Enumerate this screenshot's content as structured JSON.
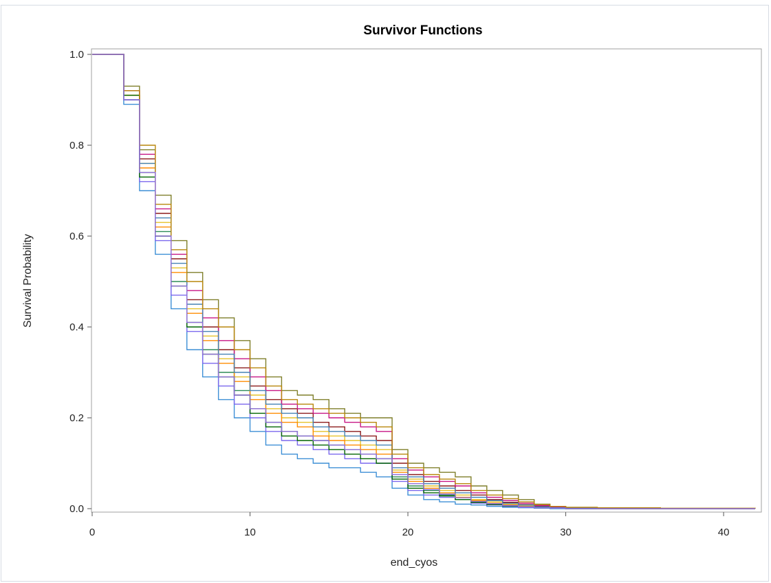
{
  "chart_data": {
    "type": "line",
    "title": "Survivor Functions",
    "xlabel": "end_cyos",
    "ylabel": "Survival Probability",
    "xlim": [
      0,
      42
    ],
    "ylim": [
      0,
      1.0
    ],
    "x_ticks": [
      "0",
      "10",
      "20",
      "30",
      "40"
    ],
    "y_ticks": [
      "0.0",
      "0.2",
      "0.4",
      "0.6",
      "0.8",
      "1.0"
    ],
    "x_tick_values": [
      0,
      10,
      20,
      30,
      40
    ],
    "y_tick_values": [
      0,
      0.2,
      0.4,
      0.6,
      0.8,
      1.0
    ],
    "grid": false,
    "legend": "none",
    "step": true,
    "x": [
      0,
      2,
      3,
      4,
      5,
      6,
      7,
      8,
      9,
      10,
      11,
      12,
      13,
      14,
      15,
      16,
      17,
      18,
      19,
      20,
      21,
      22,
      23,
      24,
      25,
      26,
      27,
      28,
      29,
      30,
      32,
      36,
      42
    ],
    "series": [
      {
        "color": "#e6c229",
        "values": [
          1.0,
          0.91,
          0.76,
          0.63,
          0.53,
          0.44,
          0.38,
          0.33,
          0.29,
          0.25,
          0.22,
          0.2,
          0.19,
          0.17,
          0.16,
          0.15,
          0.14,
          0.13,
          0.085,
          0.065,
          0.05,
          0.04,
          0.03,
          0.02,
          0.015,
          0.01,
          0.006,
          0.004,
          0.002,
          0.001,
          0.0,
          0.0,
          0.0
        ]
      },
      {
        "color": "#7f7f2a",
        "values": [
          1.0,
          0.93,
          0.79,
          0.69,
          0.59,
          0.52,
          0.46,
          0.42,
          0.37,
          0.33,
          0.29,
          0.26,
          0.25,
          0.24,
          0.22,
          0.21,
          0.2,
          0.2,
          0.13,
          0.1,
          0.09,
          0.08,
          0.07,
          0.05,
          0.04,
          0.03,
          0.02,
          0.01,
          0.005,
          0.003,
          0.002,
          0.0,
          0.0
        ]
      },
      {
        "color": "#3d8fd6",
        "values": [
          1.0,
          0.89,
          0.7,
          0.56,
          0.44,
          0.35,
          0.29,
          0.24,
          0.2,
          0.17,
          0.14,
          0.12,
          0.11,
          0.1,
          0.09,
          0.09,
          0.08,
          0.07,
          0.045,
          0.03,
          0.02,
          0.015,
          0.01,
          0.008,
          0.005,
          0.003,
          0.002,
          0.001,
          0.0,
          0.0,
          0.0,
          0.0,
          0.0
        ]
      },
      {
        "color": "#2e8b57",
        "values": [
          1.0,
          0.9,
          0.74,
          0.61,
          0.5,
          0.41,
          0.35,
          0.3,
          0.26,
          0.22,
          0.19,
          0.17,
          0.16,
          0.15,
          0.14,
          0.13,
          0.12,
          0.11,
          0.07,
          0.05,
          0.04,
          0.03,
          0.02,
          0.015,
          0.01,
          0.007,
          0.004,
          0.002,
          0.001,
          0.0,
          0.0,
          0.0,
          0.0
        ]
      },
      {
        "color": "#8b1a1a",
        "values": [
          1.0,
          0.92,
          0.77,
          0.65,
          0.55,
          0.46,
          0.4,
          0.35,
          0.31,
          0.27,
          0.24,
          0.22,
          0.21,
          0.19,
          0.18,
          0.17,
          0.16,
          0.15,
          0.1,
          0.075,
          0.06,
          0.05,
          0.04,
          0.03,
          0.02,
          0.014,
          0.009,
          0.005,
          0.003,
          0.001,
          0.0,
          0.0,
          0.0
        ]
      },
      {
        "color": "#7b68ee",
        "values": [
          1.0,
          0.9,
          0.72,
          0.59,
          0.47,
          0.39,
          0.32,
          0.27,
          0.23,
          0.2,
          0.17,
          0.15,
          0.14,
          0.13,
          0.12,
          0.11,
          0.1,
          0.1,
          0.06,
          0.04,
          0.03,
          0.025,
          0.02,
          0.012,
          0.008,
          0.005,
          0.003,
          0.002,
          0.001,
          0.0,
          0.0,
          0.0,
          0.0
        ]
      },
      {
        "color": "#ff8c00",
        "values": [
          1.0,
          0.91,
          0.75,
          0.62,
          0.52,
          0.43,
          0.37,
          0.32,
          0.28,
          0.24,
          0.21,
          0.19,
          0.18,
          0.16,
          0.15,
          0.14,
          0.13,
          0.12,
          0.08,
          0.06,
          0.045,
          0.035,
          0.025,
          0.018,
          0.012,
          0.008,
          0.005,
          0.003,
          0.002,
          0.001,
          0.0,
          0.0,
          0.0
        ]
      },
      {
        "color": "#c71585",
        "values": [
          1.0,
          0.92,
          0.78,
          0.66,
          0.56,
          0.48,
          0.42,
          0.37,
          0.33,
          0.29,
          0.26,
          0.23,
          0.22,
          0.21,
          0.2,
          0.19,
          0.18,
          0.17,
          0.11,
          0.085,
          0.07,
          0.06,
          0.05,
          0.035,
          0.025,
          0.018,
          0.012,
          0.007,
          0.004,
          0.002,
          0.001,
          0.0,
          0.0
        ]
      },
      {
        "color": "#006400",
        "values": [
          1.0,
          0.91,
          0.73,
          0.6,
          0.49,
          0.4,
          0.34,
          0.29,
          0.25,
          0.21,
          0.18,
          0.16,
          0.15,
          0.14,
          0.13,
          0.12,
          0.11,
          0.1,
          0.065,
          0.045,
          0.035,
          0.028,
          0.02,
          0.014,
          0.009,
          0.006,
          0.004,
          0.002,
          0.001,
          0.0,
          0.0,
          0.0,
          0.0
        ]
      },
      {
        "color": "#4682b4",
        "values": [
          1.0,
          0.9,
          0.76,
          0.64,
          0.54,
          0.45,
          0.39,
          0.34,
          0.3,
          0.26,
          0.23,
          0.21,
          0.2,
          0.18,
          0.17,
          0.16,
          0.15,
          0.14,
          0.09,
          0.07,
          0.055,
          0.045,
          0.035,
          0.025,
          0.018,
          0.012,
          0.008,
          0.004,
          0.002,
          0.001,
          0.0,
          0.0,
          0.0
        ]
      },
      {
        "color": "#b8860b",
        "values": [
          1.0,
          0.92,
          0.8,
          0.67,
          0.57,
          0.5,
          0.44,
          0.4,
          0.35,
          0.31,
          0.27,
          0.24,
          0.23,
          0.22,
          0.21,
          0.2,
          0.19,
          0.18,
          0.12,
          0.09,
          0.075,
          0.065,
          0.055,
          0.04,
          0.03,
          0.022,
          0.015,
          0.009,
          0.005,
          0.003,
          0.002,
          0.001,
          0.0
        ]
      },
      {
        "color": "#9370db",
        "values": [
          1.0,
          0.9,
          0.74,
          0.6,
          0.49,
          0.41,
          0.34,
          0.29,
          0.25,
          0.22,
          0.19,
          0.17,
          0.16,
          0.15,
          0.14,
          0.13,
          0.12,
          0.11,
          0.075,
          0.055,
          0.042,
          0.032,
          0.024,
          0.016,
          0.011,
          0.007,
          0.004,
          0.002,
          0.001,
          0.0,
          0.0,
          0.0,
          0.0
        ]
      }
    ]
  }
}
